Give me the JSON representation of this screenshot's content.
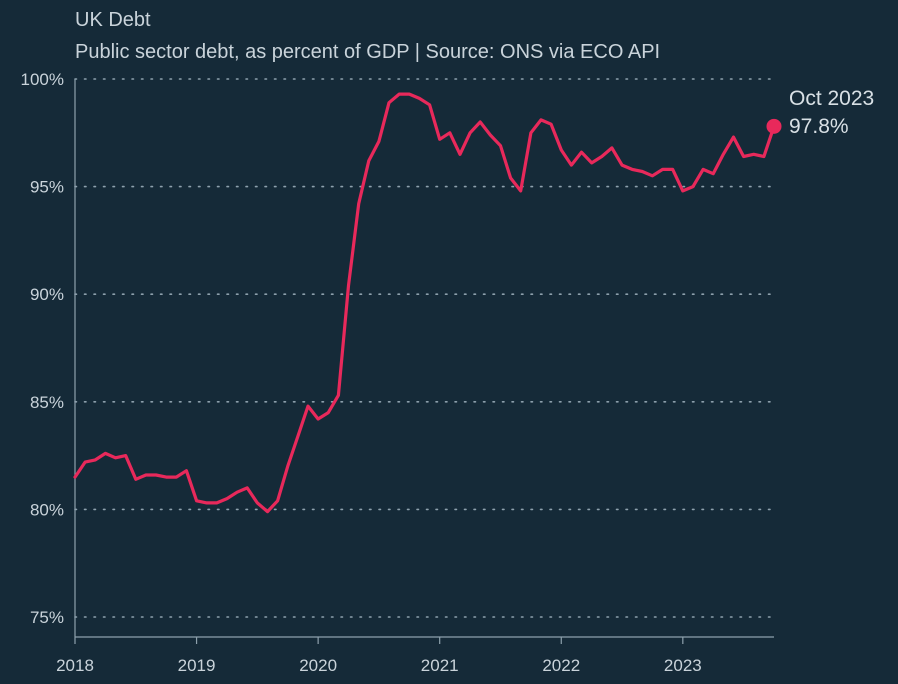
{
  "title": "UK Debt",
  "subtitle": "Public sector debt, as percent of GDP | Source: ONS via ECO API",
  "colors": {
    "background": "#152a38",
    "line": "#e8295b",
    "grid": "#8ea1ad",
    "axis": "#8ea1ad",
    "text": "#c9d3da"
  },
  "chart_data": {
    "type": "line",
    "title": "UK Debt",
    "subtitle": "Public sector debt, as percent of GDP | Source: ONS via ECO API",
    "xlabel": "",
    "ylabel": "",
    "ylim": [
      75,
      100
    ],
    "xlim": [
      "2018-01",
      "2023-10"
    ],
    "grid": true,
    "y_ticks": [
      75,
      80,
      85,
      90,
      95,
      100
    ],
    "y_tick_labels": [
      "75%",
      "80%",
      "85%",
      "90%",
      "95%",
      "100%"
    ],
    "x_ticks": [
      "2018-01",
      "2019-01",
      "2020-01",
      "2021-01",
      "2022-01",
      "2023-01"
    ],
    "x_tick_labels": [
      "2018",
      "2019",
      "2020",
      "2021",
      "2022",
      "2023"
    ],
    "series": [
      {
        "x": [
          "2018-01",
          "2018-02",
          "2018-03",
          "2018-04",
          "2018-05",
          "2018-06",
          "2018-07",
          "2018-08",
          "2018-09",
          "2018-10",
          "2018-11",
          "2018-12",
          "2019-01",
          "2019-02",
          "2019-03",
          "2019-04",
          "2019-05",
          "2019-06",
          "2019-07",
          "2019-08",
          "2019-09",
          "2019-10",
          "2019-11",
          "2019-12",
          "2020-01",
          "2020-02",
          "2020-03",
          "2020-04",
          "2020-05",
          "2020-06",
          "2020-07",
          "2020-08",
          "2020-09",
          "2020-10",
          "2020-11",
          "2020-12",
          "2021-01",
          "2021-02",
          "2021-03",
          "2021-04",
          "2021-05",
          "2021-06",
          "2021-07",
          "2021-08",
          "2021-09",
          "2021-10",
          "2021-11",
          "2021-12",
          "2022-01",
          "2022-02",
          "2022-03",
          "2022-04",
          "2022-05",
          "2022-06",
          "2022-07",
          "2022-08",
          "2022-09",
          "2022-10",
          "2022-11",
          "2022-12",
          "2023-01",
          "2023-02",
          "2023-03",
          "2023-04",
          "2023-05",
          "2023-06",
          "2023-07",
          "2023-08",
          "2023-09",
          "2023-10"
        ],
        "values": [
          81.5,
          82.2,
          82.3,
          82.6,
          82.4,
          82.5,
          81.4,
          81.6,
          81.6,
          81.5,
          81.5,
          81.8,
          80.4,
          80.3,
          80.3,
          80.5,
          80.8,
          81.0,
          80.3,
          79.9,
          80.4,
          82.0,
          83.4,
          84.8,
          84.2,
          84.5,
          85.3,
          90.4,
          94.2,
          96.2,
          97.1,
          98.9,
          99.3,
          99.3,
          99.1,
          98.8,
          97.2,
          97.5,
          96.5,
          97.5,
          98.0,
          97.4,
          96.9,
          95.4,
          94.8,
          97.5,
          98.1,
          97.9,
          96.7,
          96.0,
          96.6,
          96.1,
          96.4,
          96.8,
          96.0,
          95.8,
          95.7,
          95.5,
          95.8,
          95.8,
          94.8,
          95.0,
          95.8,
          95.6,
          96.5,
          97.3,
          96.4,
          96.5,
          96.4,
          97.8
        ]
      }
    ],
    "annotation": {
      "label": "Oct 2023",
      "value_label": "97.8%",
      "x": "2023-10",
      "y": 97.8
    }
  }
}
